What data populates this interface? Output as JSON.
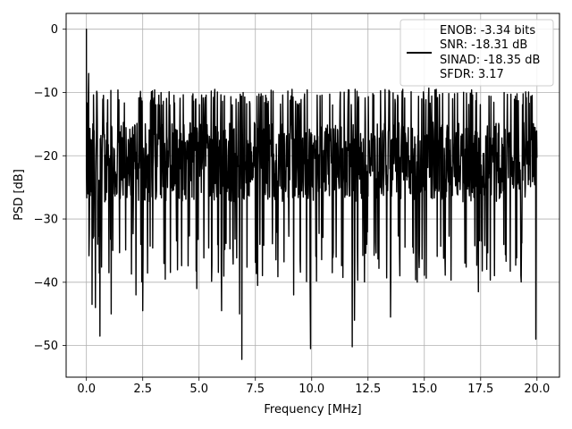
{
  "chart_data": {
    "type": "line",
    "title": "",
    "xlabel": "Frequency [MHz]",
    "ylabel": "PSD [dB]",
    "xlim": [
      -0.9,
      21.0
    ],
    "ylim": [
      -55,
      2.5
    ],
    "xticks": [
      0.0,
      2.5,
      5.0,
      7.5,
      10.0,
      12.5,
      15.0,
      17.5,
      20.0
    ],
    "xtick_labels": [
      "0.0",
      "2.5",
      "5.0",
      "7.5",
      "10.0",
      "12.5",
      "15.0",
      "17.5",
      "20.0"
    ],
    "yticks": [
      0,
      -10,
      -20,
      -30,
      -40,
      -50
    ],
    "ytick_labels": [
      "0",
      "−10",
      "−20",
      "−30",
      "−40",
      "−50"
    ],
    "grid": true,
    "legend_position": "top-right",
    "line_color": "#000000",
    "series": [
      {
        "name": "ENOB: -3.34 bits\nSNR: -18.31 dB\nSINAD: -18.35 dB\nSFDR: 3.17",
        "approximate": true,
        "x_range": [
          0.0,
          20.0
        ],
        "typical_band": [
          -30,
          -12
        ],
        "peak": {
          "x": 0.0,
          "y": 0.0
        },
        "notable_points": [
          {
            "x": 0.05,
            "y": -20
          },
          {
            "x": 0.1,
            "y": -7
          },
          {
            "x": 0.25,
            "y": -43.5
          },
          {
            "x": 0.4,
            "y": -44
          },
          {
            "x": 0.6,
            "y": -48.5
          },
          {
            "x": 1.1,
            "y": -45
          },
          {
            "x": 2.2,
            "y": -42
          },
          {
            "x": 2.5,
            "y": -44.5
          },
          {
            "x": 4.9,
            "y": -41
          },
          {
            "x": 5.7,
            "y": -9.5
          },
          {
            "x": 6.0,
            "y": -44.5
          },
          {
            "x": 6.9,
            "y": -52.2
          },
          {
            "x": 6.8,
            "y": -45
          },
          {
            "x": 7.6,
            "y": -40.5
          },
          {
            "x": 9.2,
            "y": -42
          },
          {
            "x": 9.95,
            "y": -50.5
          },
          {
            "x": 11.8,
            "y": -50.2
          },
          {
            "x": 11.9,
            "y": -46
          },
          {
            "x": 13.5,
            "y": -45.5
          },
          {
            "x": 15.2,
            "y": -9.3
          },
          {
            "x": 17.4,
            "y": -41.5
          },
          {
            "x": 19.95,
            "y": -49
          }
        ]
      }
    ],
    "legend_lines": [
      "ENOB: -3.34 bits",
      "SNR: -18.31 dB",
      "SINAD: -18.35 dB",
      "SFDR: 3.17"
    ]
  }
}
